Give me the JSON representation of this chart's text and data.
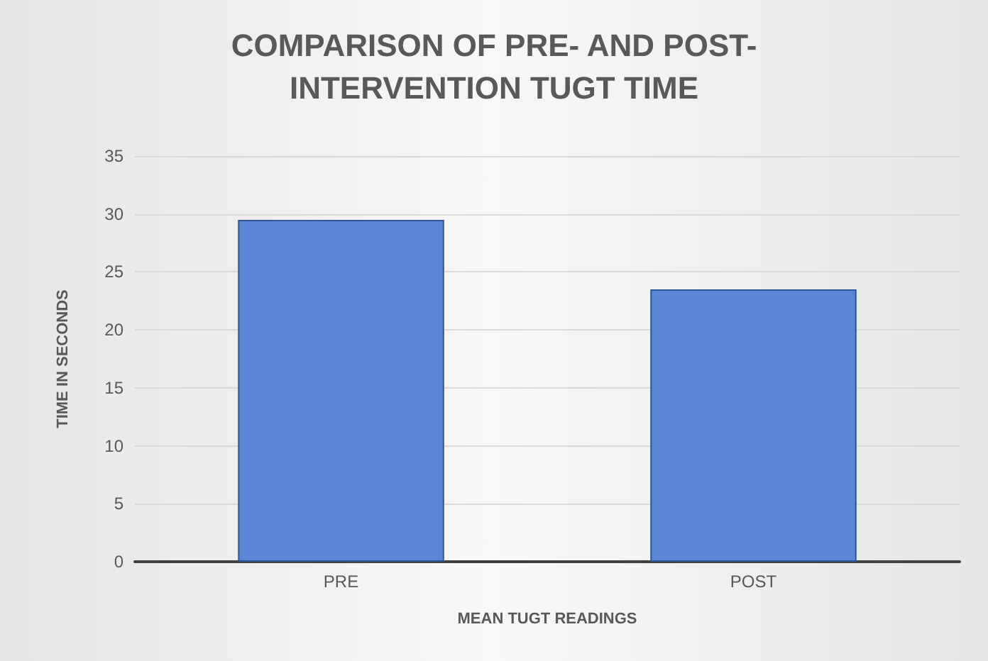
{
  "chart_data": {
    "type": "bar",
    "title": "COMPARISON OF PRE- AND POST-\nINTERVENTION TUGT TIME",
    "xlabel": "MEAN TUGT READINGS",
    "ylabel": "TIME IN SECONDS",
    "categories": [
      "PRE",
      "POST"
    ],
    "values": [
      29.5,
      23.5
    ],
    "color": "#5b86d6",
    "ylim": [
      0,
      35
    ],
    "yticks": [
      0,
      5,
      10,
      15,
      20,
      25,
      30,
      35
    ],
    "grid": "y"
  }
}
